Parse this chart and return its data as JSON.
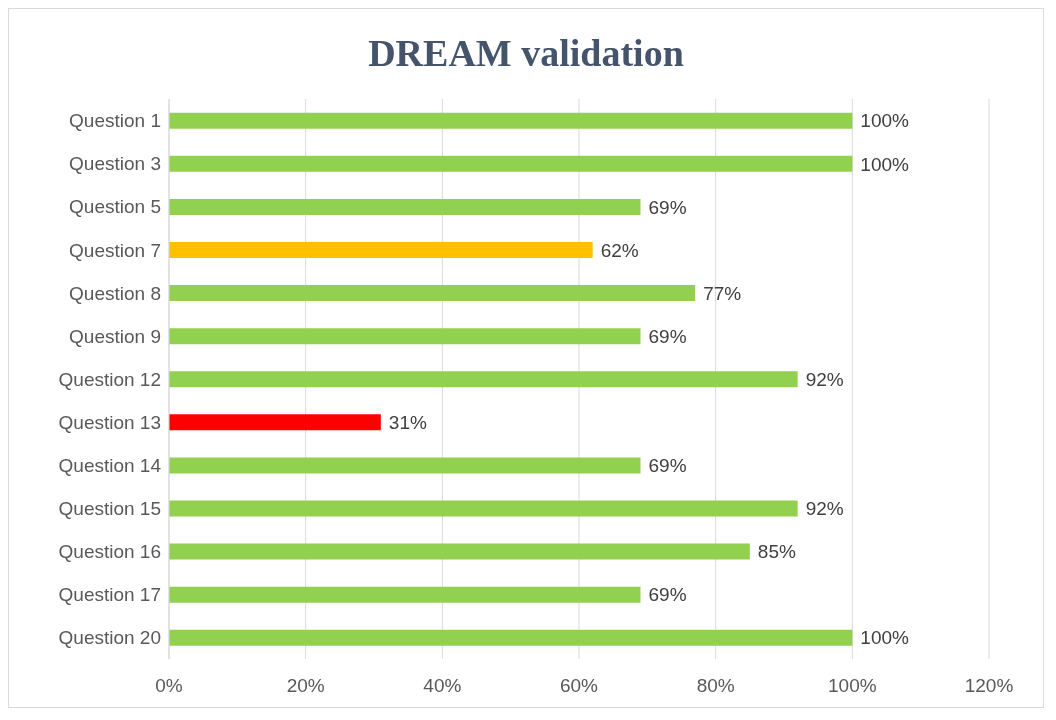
{
  "chart_data": {
    "type": "bar",
    "orientation": "horizontal",
    "title": "DREAM validation",
    "categories": [
      "Question 1",
      "Question 3",
      "Question 5",
      "Question 7",
      "Question 8",
      "Question 9",
      "Question 12",
      "Question 13",
      "Question 14",
      "Question 15",
      "Question 16",
      "Question 17",
      "Question 20"
    ],
    "values": [
      100,
      100,
      69,
      62,
      77,
      69,
      92,
      31,
      69,
      92,
      85,
      69,
      100
    ],
    "colors": [
      "#92d050",
      "#92d050",
      "#92d050",
      "#ffc000",
      "#92d050",
      "#92d050",
      "#92d050",
      "#ff0000",
      "#92d050",
      "#92d050",
      "#92d050",
      "#92d050",
      "#92d050"
    ],
    "value_labels": [
      "100%",
      "100%",
      "69%",
      "62%",
      "77%",
      "69%",
      "92%",
      "31%",
      "69%",
      "92%",
      "85%",
      "69%",
      "100%"
    ],
    "xlim": [
      0,
      120
    ],
    "xticks": [
      {
        "value": 0,
        "label": "0%"
      },
      {
        "value": 20,
        "label": "20%"
      },
      {
        "value": 40,
        "label": "40%"
      },
      {
        "value": 60,
        "label": "60%"
      },
      {
        "value": 80,
        "label": "80%"
      },
      {
        "value": 100,
        "label": "100%"
      },
      {
        "value": 120,
        "label": "120%"
      }
    ],
    "grid": "x"
  }
}
